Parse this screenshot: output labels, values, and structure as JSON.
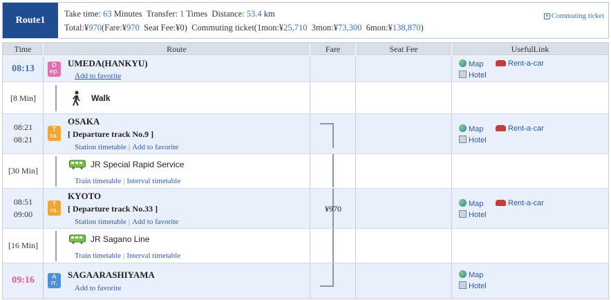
{
  "summary": {
    "route_label": "Route1",
    "take_time_label": "Take time:",
    "take_time_value": "63",
    "take_time_unit": "Minutes",
    "transfer_label": "Transfer:",
    "transfer_value": "1",
    "transfer_unit": "Times",
    "distance_label": "Distance:",
    "distance_value": "53.4",
    "distance_unit": "km",
    "total_label": "Total:¥",
    "total_value": "970",
    "fare_label": "(Fare:¥",
    "fare_value": "970",
    "seat_fee_label": "Seat Fee:¥",
    "seat_fee_value": "0)",
    "commuting_label": "Commuting ticket(1mon:¥",
    "mon1_value": "25,710",
    "mon3_label": "3mon:¥",
    "mon3_value": "73,300",
    "mon6_label": "6mon:¥",
    "mon6_value": "138,870",
    "close_paren": ")",
    "commuting_link": "Commuting ticket"
  },
  "headers": {
    "time": "Time",
    "route": "Route",
    "fare": "Fare",
    "seat_fee": "Seat Fee",
    "useful_link": "UsefulLink"
  },
  "stops": {
    "s1": {
      "time": "08:13",
      "badge_top": "D",
      "badge_bottom": "ep.",
      "name": "UMEDA(HANKYU)",
      "fav": "Add to favorite",
      "map": "Map",
      "car": "Rent-a-car",
      "hotel": "Hotel"
    },
    "s2": {
      "time_arr": "08:21",
      "time_dep": "08:21",
      "badge_top": "T",
      "badge_bottom": "ra.",
      "name": "OSAKA",
      "track": "[ Departure track No.9 ]",
      "timetable": "Station timetable",
      "fav": "Add to favorite",
      "map": "Map",
      "car": "Rent-a-car",
      "hotel": "Hotel"
    },
    "s3": {
      "time_arr": "08:51",
      "time_dep": "09:00",
      "badge_top": "T",
      "badge_bottom": "ra.",
      "name": "KYOTO",
      "track": "[ Departure track No.33 ]",
      "timetable": "Station timetable",
      "fav": "Add to favorite",
      "fare": "¥970",
      "map": "Map",
      "car": "Rent-a-car",
      "hotel": "Hotel"
    },
    "s4": {
      "time": "09:16",
      "badge_top": "A",
      "badge_bottom": "rr.",
      "name": "SAGAARASHIYAMA",
      "fav": "Add to favorite",
      "map": "Map",
      "hotel": "Hotel"
    }
  },
  "transits": {
    "t1": {
      "duration": "[8 Min]",
      "label": "Walk",
      "icon": "walk-icon"
    },
    "t2": {
      "duration": "[30 Min]",
      "label": "JR Special Rapid Service",
      "icon": "train-icon",
      "timetable": "Train timetable",
      "interval": "Interval timetable"
    },
    "t3": {
      "duration": "[16 Min]",
      "label": "JR Sagano Line",
      "icon": "train-icon",
      "timetable": "Train timetable",
      "interval": "Interval timetable"
    }
  },
  "colors": {
    "route_badge": "#1f4d8f",
    "dep_time": "#3a6fb0",
    "arr_time": "#e0559a",
    "dep_badge": "#e06fb0",
    "transfer_badge": "#f0a636",
    "arr_badge": "#4f8fd6",
    "header_bg": "#d9dfe8",
    "station_row_bg": "#eaf0fb"
  }
}
